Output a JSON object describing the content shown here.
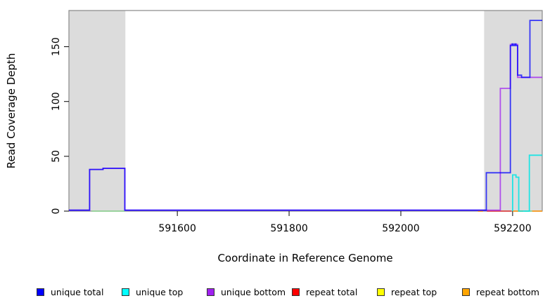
{
  "chart_data": {
    "type": "line",
    "title": "",
    "xlabel": "Coordinate in Reference Genome",
    "ylabel": "Read Coverage Depth",
    "xlim": [
      591406,
      592253
    ],
    "ylim": [
      0,
      183
    ],
    "xticks": [
      591600,
      591800,
      592000,
      592200
    ],
    "yticks": [
      0,
      50,
      100,
      150
    ],
    "grid": false,
    "legend_position": "bottom",
    "background_color": "#ffffff",
    "shaded_region_color": "#DCDCDC",
    "box_color": "#888888",
    "shaded_regions": [
      {
        "x0": 591406,
        "x1": 591507
      },
      {
        "x0": 592149,
        "x1": 592253
      }
    ],
    "series": [
      {
        "name": "repeat total",
        "color": "#FF0000",
        "opacity": 0.6,
        "segments": [
          [
            [
              592154,
              0
            ],
            [
              592198,
              0
            ]
          ]
        ]
      },
      {
        "name": "repeat bottom",
        "color": "#FF9912",
        "opacity": 0.9,
        "segments": [
          [
            [
              592138,
              0
            ],
            [
              592147,
              0
            ]
          ],
          [
            [
              592200,
              0
            ],
            [
              592219,
              0
            ]
          ],
          [
            [
              592235,
              0
            ],
            [
              592253,
              0
            ]
          ]
        ]
      },
      {
        "name": "pale-green-baseline (no legend entry)",
        "color": "#8FD694",
        "opacity": 0.9,
        "segments": [
          [
            [
              591447,
              0
            ],
            [
              591506,
              0
            ]
          ],
          [
            [
              592221,
              0
            ],
            [
              592235,
              0
            ]
          ]
        ]
      },
      {
        "name": "unique top",
        "color": "#00E5E5",
        "opacity": 0.85,
        "segments": [
          [
            [
              592200,
              0
            ],
            [
              592200,
              33
            ],
            [
              592206,
              33
            ],
            [
              592206,
              31
            ],
            [
              592211,
              31
            ],
            [
              592211,
              0
            ],
            [
              592230,
              0
            ],
            [
              592230,
              51
            ],
            [
              592253,
              51
            ]
          ]
        ]
      },
      {
        "name": "unique bottom",
        "color": "#A020F0",
        "opacity": 0.75,
        "segments": [
          [
            [
              591406,
              0.8
            ],
            [
              591443,
              0.8
            ],
            [
              591443,
              38
            ],
            [
              591467,
              38
            ],
            [
              591467,
              39
            ],
            [
              591506,
              39
            ],
            [
              591506,
              0.8
            ],
            [
              592178,
              0.8
            ],
            [
              592178,
              112
            ],
            [
              592196,
              112
            ],
            [
              592196,
              152
            ],
            [
              592209,
              152
            ],
            [
              592209,
              122
            ],
            [
              592253,
              122
            ]
          ]
        ]
      },
      {
        "name": "unique total",
        "color": "#0000FF",
        "opacity": 0.75,
        "segments": [
          [
            [
              591406,
              0.8
            ],
            [
              591443,
              0.8
            ],
            [
              591443,
              38
            ],
            [
              591467,
              38
            ],
            [
              591467,
              39
            ],
            [
              591506,
              39
            ],
            [
              591506,
              0.8
            ],
            [
              592153,
              0.8
            ],
            [
              592153,
              35
            ],
            [
              592196,
              35
            ],
            [
              592196,
              151
            ],
            [
              592199,
              151
            ],
            [
              592199,
              152.5
            ],
            [
              592201,
              152.5
            ],
            [
              592201,
              151
            ],
            [
              592204,
              151
            ],
            [
              592204,
              152.5
            ],
            [
              592206,
              152.5
            ],
            [
              592206,
              151
            ],
            [
              592209,
              151
            ],
            [
              592209,
              124
            ],
            [
              592216,
              124
            ],
            [
              592216,
              122
            ],
            [
              592231,
              122
            ],
            [
              592231,
              174
            ],
            [
              592253,
              174
            ]
          ]
        ]
      }
    ]
  },
  "legend": {
    "items": [
      {
        "label": "unique total",
        "color": "#0000FF"
      },
      {
        "label": "unique top",
        "color": "#00FFFF"
      },
      {
        "label": "unique bottom",
        "color": "#A020F0"
      },
      {
        "label": "repeat total",
        "color": "#FF0000"
      },
      {
        "label": "repeat top",
        "color": "#FFFF00"
      },
      {
        "label": "repeat bottom",
        "color": "#FFA500"
      }
    ]
  },
  "axes": {
    "x_title": "Coordinate in Reference Genome",
    "y_title": "Read Coverage Depth"
  }
}
